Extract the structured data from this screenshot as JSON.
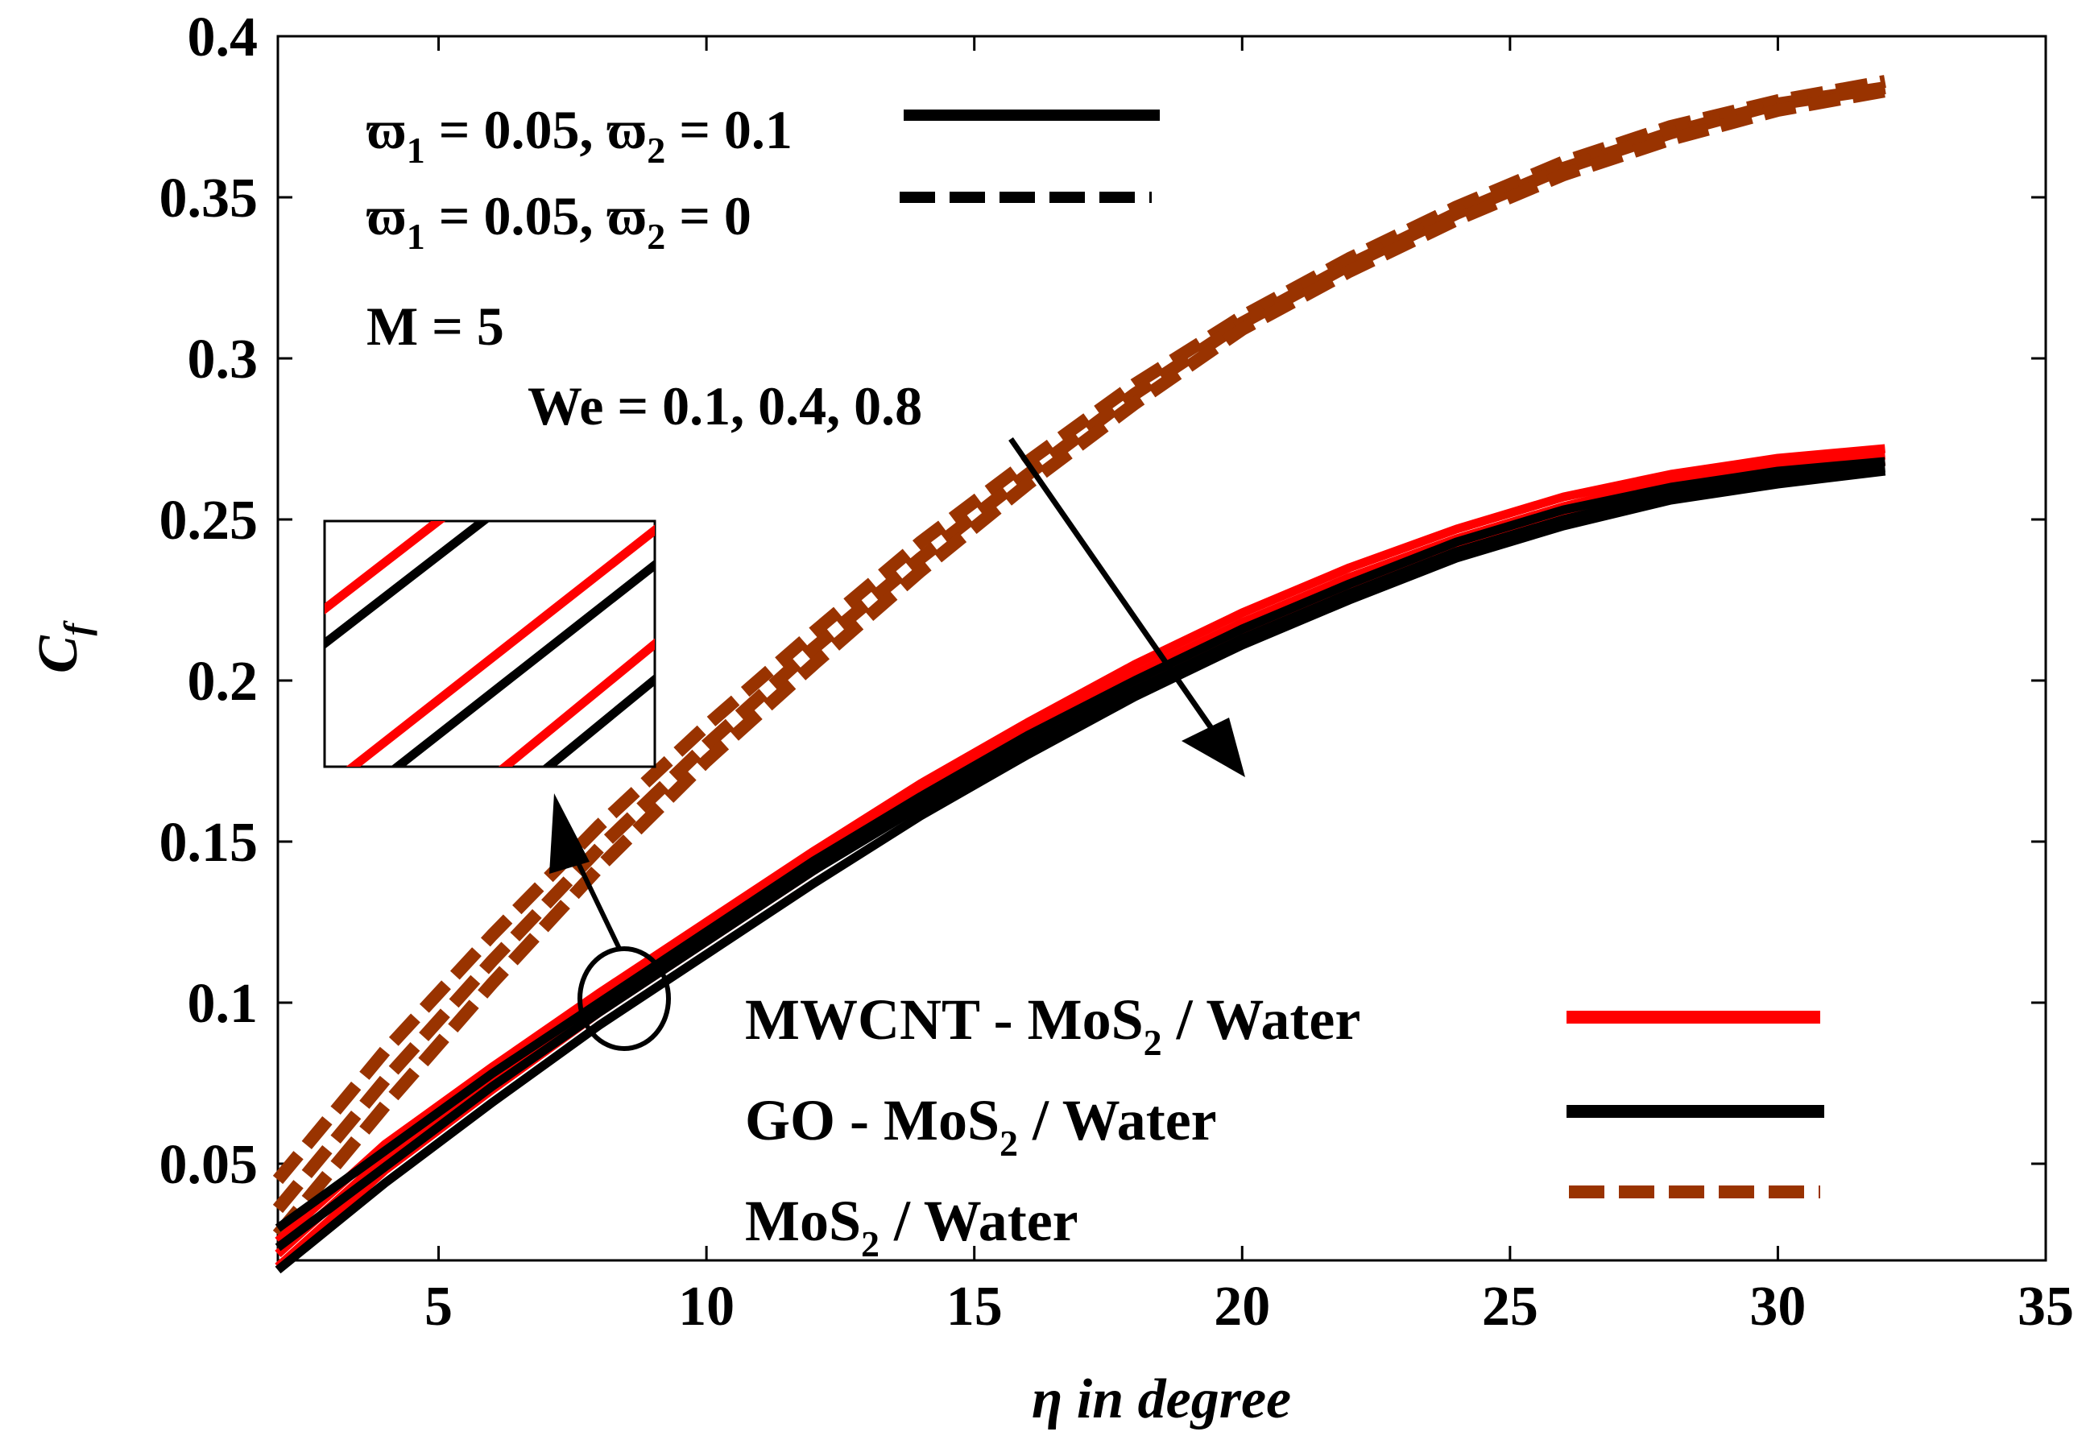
{
  "chart_data": {
    "type": "line",
    "xlabel": "η in degree",
    "ylabel": "C",
    "ylabel_sub": "f",
    "xlim": [
      2,
      35
    ],
    "ylim": [
      0.02,
      0.4
    ],
    "xticks": [
      5,
      10,
      15,
      20,
      25,
      30,
      35
    ],
    "yticks": [
      0.05,
      0.1,
      0.15,
      0.2,
      0.25,
      0.3,
      0.35,
      0.4
    ],
    "xtick_labels": [
      "5",
      "10",
      "15",
      "20",
      "25",
      "30",
      "35"
    ],
    "ytick_labels": [
      "0.05",
      "0.1",
      "0.15",
      "0.2",
      "0.25",
      "0.3",
      "0.35",
      "0.4"
    ],
    "x": [
      2,
      4,
      6,
      8,
      10,
      12,
      14,
      16,
      18,
      20,
      22,
      24,
      26,
      28,
      30,
      32
    ],
    "series": [
      {
        "name": "MWCNT - MoS2 / Water, We = 0.1",
        "nanofluid": "MWCNT - MoS2 / Water",
        "style": "solid",
        "color": "#ff0000",
        "values": [
          0.026,
          0.056,
          0.08,
          0.103,
          0.125,
          0.147,
          0.168,
          0.187,
          0.205,
          0.221,
          0.235,
          0.247,
          0.257,
          0.264,
          0.269,
          0.272
        ]
      },
      {
        "name": "MWCNT - MoS2 / Water, We = 0.4",
        "nanofluid": "MWCNT - MoS2 / Water",
        "style": "solid",
        "color": "#ff0000",
        "values": [
          0.022,
          0.052,
          0.077,
          0.1,
          0.122,
          0.144,
          0.165,
          0.184,
          0.202,
          0.218,
          0.232,
          0.244,
          0.254,
          0.262,
          0.267,
          0.27
        ]
      },
      {
        "name": "MWCNT - MoS2 / Water, We = 0.8",
        "nanofluid": "MWCNT - MoS2 / Water",
        "style": "solid",
        "color": "#ff0000",
        "values": [
          0.018,
          0.048,
          0.073,
          0.097,
          0.119,
          0.141,
          0.162,
          0.181,
          0.199,
          0.215,
          0.229,
          0.241,
          0.251,
          0.259,
          0.264,
          0.268
        ]
      },
      {
        "name": "GO - MoS2 / Water, We = 0.1",
        "nanofluid": "GO - MoS2 / Water",
        "style": "solid",
        "color": "#000000",
        "values": [
          0.03,
          0.054,
          0.078,
          0.1,
          0.122,
          0.144,
          0.164,
          0.183,
          0.2,
          0.216,
          0.23,
          0.243,
          0.253,
          0.26,
          0.265,
          0.268
        ]
      },
      {
        "name": "GO - MoS2 / Water, We = 0.4",
        "nanofluid": "GO - MoS2 / Water",
        "style": "solid",
        "color": "#000000",
        "values": [
          0.024,
          0.049,
          0.074,
          0.097,
          0.119,
          0.141,
          0.161,
          0.18,
          0.197,
          0.213,
          0.227,
          0.24,
          0.25,
          0.258,
          0.263,
          0.266
        ]
      },
      {
        "name": "GO - MoS2 / Water, We = 0.8",
        "nanofluid": "GO - MoS2 / Water",
        "style": "solid",
        "color": "#000000",
        "values": [
          0.017,
          0.044,
          0.069,
          0.093,
          0.115,
          0.137,
          0.158,
          0.177,
          0.195,
          0.211,
          0.225,
          0.238,
          0.248,
          0.256,
          0.261,
          0.265
        ]
      },
      {
        "name": "MoS2 / Water, We = 0.1",
        "nanofluid": "MoS2 / Water",
        "style": "dashed",
        "color": "#993300",
        "values": [
          0.045,
          0.085,
          0.121,
          0.155,
          0.186,
          0.215,
          0.243,
          0.268,
          0.292,
          0.313,
          0.331,
          0.347,
          0.361,
          0.372,
          0.38,
          0.386
        ]
      },
      {
        "name": "MoS2 / Water, We = 0.4",
        "nanofluid": "MoS2 / Water",
        "style": "dashed",
        "color": "#993300",
        "values": [
          0.036,
          0.076,
          0.113,
          0.148,
          0.18,
          0.21,
          0.238,
          0.264,
          0.289,
          0.311,
          0.329,
          0.345,
          0.359,
          0.37,
          0.379,
          0.384
        ]
      },
      {
        "name": "MoS2 / Water, We = 0.8",
        "nanofluid": "MoS2 / Water",
        "style": "dashed",
        "color": "#993300",
        "values": [
          0.028,
          0.068,
          0.106,
          0.142,
          0.175,
          0.205,
          0.234,
          0.261,
          0.286,
          0.309,
          0.327,
          0.343,
          0.357,
          0.368,
          0.377,
          0.383
        ]
      }
    ],
    "annotations": {
      "style_solid_w1": "ϖ",
      "style_solid_w1_sub": "1",
      "style_solid_w1_val": " = 0.05, ",
      "style_solid_w2": "ϖ",
      "style_solid_w2_sub": "2",
      "style_solid_w2_val": " = 0.1",
      "style_dashed_w1": "ϖ",
      "style_dashed_w1_sub": "1",
      "style_dashed_w1_val": " = 0.05, ",
      "style_dashed_w2": "ϖ",
      "style_dashed_w2_sub": "2",
      "style_dashed_w2_val": " = 0",
      "m_value": "M = 5",
      "we_values": "We = 0.1, 0.4, 0.8"
    },
    "legend": {
      "position": "bottom-right",
      "entries": [
        {
          "pre": "MWCNT - MoS",
          "sub": "2",
          "post": " / Water",
          "color": "#ff0000",
          "style": "solid"
        },
        {
          "pre": "GO - MoS",
          "sub": "2",
          "post": " / Water",
          "color": "#000000",
          "style": "solid"
        },
        {
          "pre": "MoS",
          "sub": "2",
          "post": " / Water",
          "color": "#993300",
          "style": "dashed"
        }
      ]
    },
    "style_legend": [
      {
        "style": "solid",
        "color": "#000000"
      },
      {
        "style": "dashed",
        "color": "#000000"
      }
    ]
  }
}
